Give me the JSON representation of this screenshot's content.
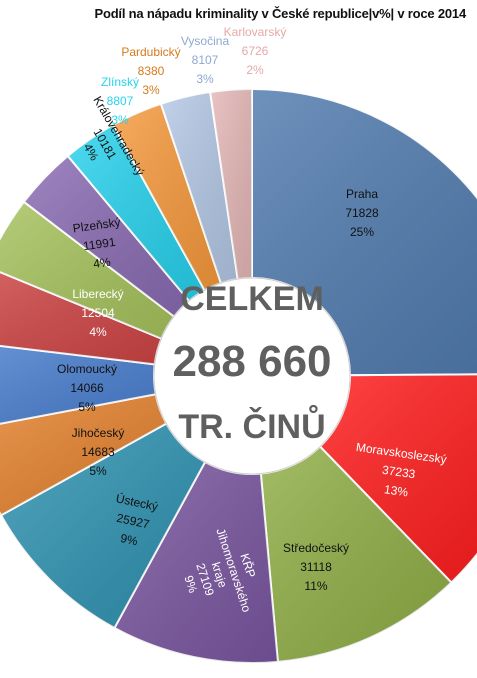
{
  "chart_data": {
    "type": "pie",
    "title": "Podíl na nápadu kriminality v České republice|v%| v roce 2014",
    "total_label": {
      "line1": "CELKEM",
      "line2": "288 660",
      "line3": "TR. ČINŮ"
    },
    "slices": [
      {
        "name": "Praha",
        "value": 71828,
        "percent": "25%",
        "color": "#4f7aae",
        "text_color": "#111111"
      },
      {
        "name": "Moravskoslezský",
        "value": 37233,
        "percent": "13%",
        "color": "#ff1a1a",
        "text_color": "#ffffff"
      },
      {
        "name": "Středočeský",
        "value": 31118,
        "percent": "11%",
        "color": "#8fae45",
        "text_color": "#111111"
      },
      {
        "name": "KŘP Jihomoravského kraje",
        "value": 27109,
        "percent": "9%",
        "color": "#7a56a0",
        "text_color": "#ffffff"
      },
      {
        "name": "Ústecký",
        "value": 25927,
        "percent": "9%",
        "color": "#2f93b2",
        "text_color": "#111111"
      },
      {
        "name": "Jihočeský",
        "value": 14683,
        "percent": "5%",
        "color": "#e6832f",
        "text_color": "#111111"
      },
      {
        "name": "Olomoucký",
        "value": 14066,
        "percent": "5%",
        "color": "#4a7fd0",
        "text_color": "#111111"
      },
      {
        "name": "Liberecký",
        "value": 12504,
        "percent": "4%",
        "color": "#d04545",
        "text_color": "#ffffff"
      },
      {
        "name": "Plzeňský",
        "value": 11991,
        "percent": "4%",
        "color": "#a7c45d",
        "text_color": "#111111"
      },
      {
        "name": "Královehradecký",
        "value": 10181,
        "percent": "4%",
        "color": "#8a6bb3",
        "text_color": "#111111"
      },
      {
        "name": "Zlínský",
        "value": 8807,
        "percent": "3%",
        "color": "#27d3ee",
        "text_color": "#27d3ee"
      },
      {
        "name": "Pardubický",
        "value": 8380,
        "percent": "3%",
        "color": "#f79a3c",
        "text_color": "#d67a1c"
      },
      {
        "name": "Vysočina",
        "value": 8107,
        "percent": "3%",
        "color": "#b4c8e6",
        "text_color": "#8fa8d0"
      },
      {
        "name": "Karlovarský",
        "value": 6726,
        "percent": "2%",
        "color": "#e6b8b8",
        "text_color": "#e6a8a8"
      }
    ]
  }
}
